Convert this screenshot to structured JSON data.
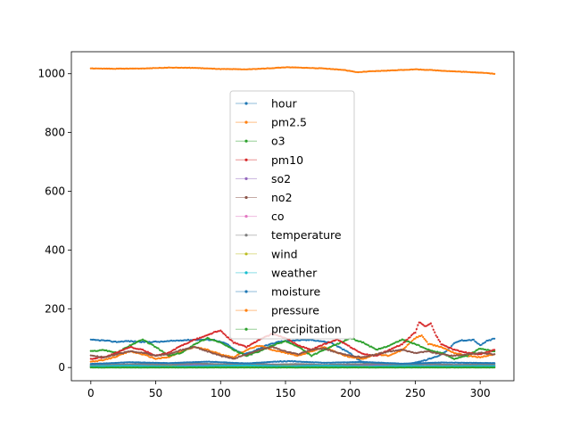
{
  "chart_data": {
    "type": "line",
    "title": "",
    "xlabel": "",
    "ylabel": "",
    "xlim": [
      -15,
      326
    ],
    "ylim": [
      -45,
      1075
    ],
    "xticks": [
      0,
      50,
      100,
      150,
      200,
      250,
      300
    ],
    "yticks": [
      0,
      200,
      400,
      600,
      800,
      1000
    ],
    "legend_position": "center",
    "grid": false,
    "n_points": 312,
    "series": [
      {
        "name": "hour",
        "color": "#1f77b4",
        "keyframes": [
          [
            0,
            94
          ],
          [
            10,
            92
          ],
          [
            20,
            87
          ],
          [
            28,
            90
          ],
          [
            40,
            87
          ],
          [
            55,
            88
          ],
          [
            70,
            93
          ],
          [
            85,
            95
          ],
          [
            95,
            94
          ],
          [
            105,
            80
          ],
          [
            110,
            62
          ],
          [
            118,
            45
          ],
          [
            125,
            55
          ],
          [
            135,
            75
          ],
          [
            145,
            88
          ],
          [
            155,
            92
          ],
          [
            170,
            94
          ],
          [
            185,
            85
          ],
          [
            195,
            60
          ],
          [
            200,
            48
          ],
          [
            205,
            30
          ],
          [
            212,
            12
          ],
          [
            222,
            10
          ],
          [
            235,
            5
          ],
          [
            248,
            15
          ],
          [
            258,
            25
          ],
          [
            268,
            40
          ],
          [
            275,
            60
          ],
          [
            280,
            82
          ],
          [
            285,
            92
          ],
          [
            295,
            94
          ],
          [
            300,
            75
          ],
          [
            305,
            90
          ],
          [
            311,
            98
          ]
        ]
      },
      {
        "name": "pm2.5",
        "color": "#ff7f0e",
        "keyframes": [
          [
            0,
            20
          ],
          [
            10,
            25
          ],
          [
            20,
            38
          ],
          [
            30,
            55
          ],
          [
            40,
            45
          ],
          [
            50,
            30
          ],
          [
            60,
            35
          ],
          [
            70,
            55
          ],
          [
            80,
            70
          ],
          [
            90,
            60
          ],
          [
            100,
            45
          ],
          [
            110,
            35
          ],
          [
            120,
            60
          ],
          [
            130,
            75
          ],
          [
            140,
            60
          ],
          [
            150,
            50
          ],
          [
            160,
            40
          ],
          [
            170,
            55
          ],
          [
            180,
            70
          ],
          [
            190,
            50
          ],
          [
            200,
            35
          ],
          [
            210,
            30
          ],
          [
            220,
            45
          ],
          [
            230,
            40
          ],
          [
            240,
            60
          ],
          [
            250,
            100
          ],
          [
            255,
            110
          ],
          [
            260,
            80
          ],
          [
            270,
            70
          ],
          [
            280,
            50
          ],
          [
            290,
            40
          ],
          [
            300,
            35
          ],
          [
            311,
            45
          ]
        ]
      },
      {
        "name": "o3",
        "color": "#2ca02c",
        "keyframes": [
          [
            0,
            55
          ],
          [
            10,
            60
          ],
          [
            20,
            50
          ],
          [
            30,
            75
          ],
          [
            40,
            95
          ],
          [
            50,
            70
          ],
          [
            60,
            40
          ],
          [
            70,
            50
          ],
          [
            80,
            80
          ],
          [
            90,
            100
          ],
          [
            100,
            85
          ],
          [
            110,
            60
          ],
          [
            120,
            40
          ],
          [
            130,
            55
          ],
          [
            140,
            75
          ],
          [
            150,
            90
          ],
          [
            160,
            70
          ],
          [
            170,
            40
          ],
          [
            180,
            60
          ],
          [
            190,
            80
          ],
          [
            200,
            100
          ],
          [
            210,
            85
          ],
          [
            220,
            60
          ],
          [
            230,
            75
          ],
          [
            240,
            95
          ],
          [
            250,
            80
          ],
          [
            260,
            60
          ],
          [
            270,
            50
          ],
          [
            280,
            30
          ],
          [
            290,
            40
          ],
          [
            300,
            65
          ],
          [
            311,
            55
          ]
        ]
      },
      {
        "name": "pm10",
        "color": "#d62728",
        "keyframes": [
          [
            0,
            30
          ],
          [
            10,
            35
          ],
          [
            20,
            50
          ],
          [
            30,
            70
          ],
          [
            40,
            60
          ],
          [
            50,
            40
          ],
          [
            60,
            50
          ],
          [
            70,
            75
          ],
          [
            80,
            95
          ],
          [
            90,
            110
          ],
          [
            95,
            120
          ],
          [
            100,
            125
          ],
          [
            105,
            105
          ],
          [
            110,
            85
          ],
          [
            120,
            70
          ],
          [
            130,
            95
          ],
          [
            140,
            115
          ],
          [
            150,
            100
          ],
          [
            160,
            75
          ],
          [
            170,
            60
          ],
          [
            180,
            80
          ],
          [
            190,
            95
          ],
          [
            200,
            70
          ],
          [
            210,
            45
          ],
          [
            220,
            40
          ],
          [
            230,
            60
          ],
          [
            240,
            80
          ],
          [
            250,
            120
          ],
          [
            253,
            155
          ],
          [
            258,
            140
          ],
          [
            262,
            150
          ],
          [
            266,
            110
          ],
          [
            270,
            80
          ],
          [
            280,
            60
          ],
          [
            290,
            50
          ],
          [
            300,
            45
          ],
          [
            311,
            60
          ]
        ]
      },
      {
        "name": "so2",
        "color": "#9467bd",
        "keyframes": [
          [
            0,
            6
          ],
          [
            40,
            9
          ],
          [
            80,
            8
          ],
          [
            120,
            12
          ],
          [
            160,
            9
          ],
          [
            200,
            7
          ],
          [
            250,
            10
          ],
          [
            311,
            8
          ]
        ]
      },
      {
        "name": "no2",
        "color": "#8c564b",
        "keyframes": [
          [
            0,
            40
          ],
          [
            10,
            35
          ],
          [
            20,
            45
          ],
          [
            30,
            55
          ],
          [
            40,
            50
          ],
          [
            50,
            40
          ],
          [
            60,
            45
          ],
          [
            70,
            60
          ],
          [
            80,
            70
          ],
          [
            90,
            55
          ],
          [
            100,
            40
          ],
          [
            110,
            30
          ],
          [
            120,
            45
          ],
          [
            130,
            60
          ],
          [
            140,
            70
          ],
          [
            150,
            55
          ],
          [
            160,
            45
          ],
          [
            170,
            60
          ],
          [
            180,
            65
          ],
          [
            190,
            50
          ],
          [
            200,
            40
          ],
          [
            210,
            35
          ],
          [
            220,
            45
          ],
          [
            230,
            55
          ],
          [
            240,
            60
          ],
          [
            250,
            50
          ],
          [
            260,
            55
          ],
          [
            270,
            45
          ],
          [
            280,
            40
          ],
          [
            290,
            45
          ],
          [
            300,
            50
          ],
          [
            311,
            45
          ]
        ]
      },
      {
        "name": "co",
        "color": "#e377c2",
        "keyframes": [
          [
            0,
            1
          ],
          [
            311,
            1
          ]
        ]
      },
      {
        "name": "temperature",
        "color": "#7f7f7f",
        "keyframes": [
          [
            0,
            8
          ],
          [
            20,
            10
          ],
          [
            40,
            12
          ],
          [
            60,
            9
          ],
          [
            80,
            14
          ],
          [
            100,
            11
          ],
          [
            120,
            13
          ],
          [
            140,
            10
          ],
          [
            160,
            12
          ],
          [
            180,
            9
          ],
          [
            200,
            11
          ],
          [
            220,
            13
          ],
          [
            240,
            10
          ],
          [
            260,
            12
          ],
          [
            280,
            9
          ],
          [
            311,
            11
          ]
        ]
      },
      {
        "name": "wind",
        "color": "#bcbd22",
        "keyframes": [
          [
            0,
            3
          ],
          [
            50,
            4
          ],
          [
            100,
            2
          ],
          [
            150,
            5
          ],
          [
            200,
            3
          ],
          [
            250,
            4
          ],
          [
            311,
            3
          ]
        ]
      },
      {
        "name": "weather",
        "color": "#17becf",
        "keyframes": [
          [
            0,
            4
          ],
          [
            30,
            6
          ],
          [
            60,
            3
          ],
          [
            90,
            5
          ],
          [
            120,
            7
          ],
          [
            150,
            4
          ],
          [
            180,
            6
          ],
          [
            210,
            3
          ],
          [
            240,
            5
          ],
          [
            270,
            4
          ],
          [
            311,
            5
          ]
        ]
      },
      {
        "name": "moisture",
        "color": "#1f77b4",
        "keyframes": [
          [
            0,
            12
          ],
          [
            30,
            18
          ],
          [
            60,
            15
          ],
          [
            90,
            20
          ],
          [
            120,
            14
          ],
          [
            150,
            22
          ],
          [
            180,
            16
          ],
          [
            210,
            19
          ],
          [
            240,
            13
          ],
          [
            270,
            17
          ],
          [
            311,
            15
          ]
        ]
      },
      {
        "name": "pressure",
        "color": "#ff7f0e",
        "keyframes": [
          [
            0,
            1018
          ],
          [
            20,
            1017
          ],
          [
            40,
            1018
          ],
          [
            60,
            1021
          ],
          [
            80,
            1020
          ],
          [
            100,
            1016
          ],
          [
            120,
            1015
          ],
          [
            140,
            1019
          ],
          [
            150,
            1022
          ],
          [
            160,
            1021
          ],
          [
            180,
            1018
          ],
          [
            195,
            1013
          ],
          [
            205,
            1005
          ],
          [
            215,
            1008
          ],
          [
            230,
            1011
          ],
          [
            250,
            1015
          ],
          [
            260,
            1013
          ],
          [
            280,
            1008
          ],
          [
            300,
            1004
          ],
          [
            311,
            1000
          ]
        ]
      },
      {
        "name": "precipitation",
        "color": "#2ca02c",
        "keyframes": [
          [
            0,
            0
          ],
          [
            311,
            0
          ]
        ]
      }
    ]
  }
}
